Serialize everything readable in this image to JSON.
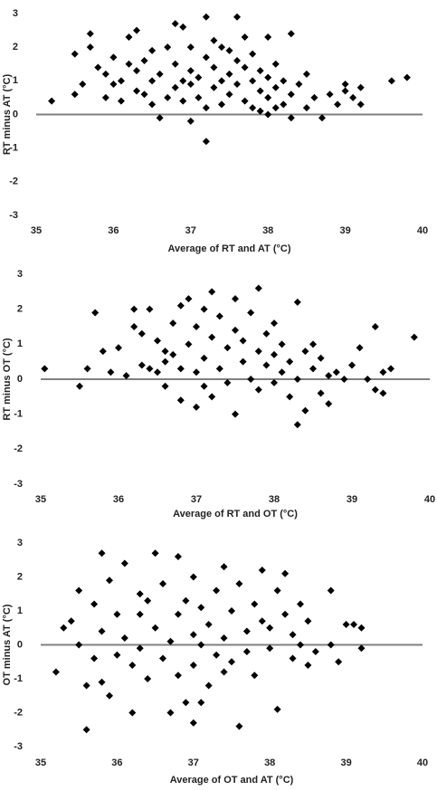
{
  "chart_data": [
    {
      "type": "scatter",
      "x_label": "Average of RT and AT (°C)",
      "y_label": "RT minus  AT (°C)",
      "xlim": [
        35,
        40
      ],
      "xticks": [
        35,
        36,
        37,
        38,
        39,
        40
      ],
      "ylim": [
        -3,
        3
      ],
      "yticks": [
        -3,
        -2,
        -1,
        0,
        1,
        2,
        3
      ],
      "color": "#000000",
      "x": [
        35.2,
        35.5,
        35.5,
        35.6,
        35.7,
        35.7,
        35.8,
        35.9,
        35.9,
        36.0,
        36.0,
        36.1,
        36.1,
        36.2,
        36.2,
        36.3,
        36.3,
        36.3,
        36.4,
        36.4,
        36.5,
        36.5,
        36.5,
        36.6,
        36.6,
        36.7,
        36.7,
        36.8,
        36.8,
        36.8,
        36.9,
        36.9,
        37.0,
        37.0,
        37.0,
        37.0,
        37.1,
        37.1,
        37.2,
        37.2,
        37.2,
        37.2,
        37.3,
        37.3,
        37.3,
        37.4,
        37.4,
        37.5,
        37.5,
        37.5,
        37.6,
        37.6,
        37.6,
        37.7,
        37.7,
        37.7,
        37.8,
        37.8,
        37.8,
        37.9,
        37.9,
        38.0,
        38.0,
        38.0,
        38.0,
        38.1,
        38.1,
        38.2,
        38.2,
        38.3,
        38.3,
        38.3,
        38.4,
        38.5,
        38.5,
        38.6,
        38.7,
        38.8,
        38.9,
        39.0,
        39.0,
        39.1,
        39.2,
        39.2,
        39.6,
        39.8,
        37.4,
        37.9,
        38.1,
        36.9
      ],
      "values": [
        0.4,
        1.8,
        0.6,
        0.9,
        2.4,
        2.0,
        1.4,
        1.2,
        0.5,
        1.7,
        0.9,
        1.0,
        0.4,
        1.5,
        2.3,
        2.5,
        1.3,
        0.7,
        1.6,
        0.6,
        1.9,
        0.3,
        1.0,
        1.2,
        -0.1,
        0.5,
        2.0,
        2.7,
        1.5,
        0.8,
        2.6,
        0.4,
        1.3,
        0.9,
        -0.2,
        2.0,
        1.1,
        0.5,
        2.9,
        1.7,
        -0.8,
        0.2,
        1.4,
        0.8,
        2.2,
        1.0,
        0.3,
        1.9,
        0.6,
        1.2,
        2.9,
        1.6,
        0.9,
        0.4,
        1.4,
        2.3,
        1.0,
        0.2,
        1.8,
        0.7,
        1.3,
        2.3,
        0.5,
        1.1,
        0.0,
        0.8,
        1.5,
        0.3,
        1.0,
        -0.1,
        2.4,
        0.6,
        0.9,
        0.2,
        1.2,
        0.5,
        -0.1,
        0.6,
        0.3,
        0.7,
        0.9,
        0.5,
        0.8,
        0.3,
        1.0,
        1.1,
        2.0,
        0.1,
        0.2,
        1.0
      ]
    },
    {
      "type": "scatter",
      "x_label": "Average of RT and OT (°C)",
      "y_label": "RT minus OT (°C)",
      "xlim": [
        35,
        40
      ],
      "xticks": [
        35,
        36,
        37,
        38,
        39,
        40
      ],
      "ylim": [
        -3,
        3
      ],
      "yticks": [
        -3,
        -2,
        -1,
        0,
        1,
        2,
        3
      ],
      "color": "#000000",
      "x": [
        35.05,
        35.5,
        35.6,
        35.7,
        35.8,
        35.9,
        36.0,
        36.1,
        36.2,
        36.2,
        36.3,
        36.3,
        36.4,
        36.4,
        36.5,
        36.5,
        36.6,
        36.6,
        36.7,
        36.7,
        36.8,
        36.8,
        36.8,
        36.9,
        36.9,
        37.0,
        37.0,
        37.0,
        37.1,
        37.1,
        37.2,
        37.2,
        37.2,
        37.3,
        37.3,
        37.4,
        37.4,
        37.5,
        37.5,
        37.5,
        37.6,
        37.6,
        37.7,
        37.7,
        37.8,
        37.8,
        37.8,
        37.9,
        37.9,
        38.0,
        38.0,
        38.0,
        38.1,
        38.1,
        38.2,
        38.2,
        38.3,
        38.3,
        38.3,
        38.4,
        38.4,
        38.5,
        38.5,
        38.6,
        38.6,
        38.7,
        38.7,
        38.8,
        38.9,
        39.0,
        39.1,
        39.2,
        39.3,
        39.3,
        39.4,
        39.4,
        39.5,
        39.8,
        37.1,
        36.6
      ],
      "values": [
        0.3,
        -0.2,
        0.3,
        1.9,
        0.8,
        0.2,
        0.9,
        0.1,
        2.0,
        1.5,
        1.3,
        0.4,
        2.0,
        0.3,
        0.2,
        1.1,
        0.5,
        -0.2,
        1.6,
        0.7,
        2.1,
        -0.6,
        0.3,
        2.3,
        1.0,
        1.5,
        -0.8,
        0.2,
        2.0,
        0.6,
        2.5,
        1.2,
        -0.5,
        0.3,
        1.8,
        0.9,
        -0.1,
        1.4,
        2.3,
        -1.0,
        0.5,
        1.1,
        0.0,
        1.9,
        0.8,
        -0.3,
        2.6,
        1.3,
        0.4,
        0.7,
        -0.1,
        1.6,
        0.2,
        1.0,
        -0.5,
        0.5,
        2.2,
        -1.3,
        0.0,
        0.8,
        -0.9,
        0.3,
        1.0,
        -0.4,
        0.6,
        -0.7,
        0.1,
        0.2,
        0.0,
        0.4,
        0.9,
        0.0,
        -0.3,
        1.5,
        -0.4,
        0.2,
        0.3,
        1.2,
        -0.2,
        0.8
      ]
    },
    {
      "type": "scatter",
      "x_label": "Average of OT and AT (°C)",
      "y_label": "OT minus AT (°C)",
      "xlim": [
        35,
        40
      ],
      "xticks": [
        35,
        36,
        37,
        38,
        39,
        40
      ],
      "ylim": [
        -3,
        3
      ],
      "yticks": [
        -3,
        -2,
        -1,
        0,
        1,
        2,
        3
      ],
      "color": "#000000",
      "x": [
        35.2,
        35.3,
        35.4,
        35.5,
        35.5,
        35.6,
        35.6,
        35.7,
        35.7,
        35.8,
        35.8,
        35.8,
        35.9,
        35.9,
        36.0,
        36.0,
        36.1,
        36.1,
        36.2,
        36.2,
        36.3,
        36.3,
        36.4,
        36.4,
        36.5,
        36.5,
        36.6,
        36.6,
        36.7,
        36.7,
        36.8,
        36.8,
        36.8,
        36.9,
        36.9,
        37.0,
        37.0,
        37.0,
        37.0,
        37.1,
        37.1,
        37.2,
        37.2,
        37.3,
        37.3,
        37.4,
        37.4,
        37.4,
        37.5,
        37.5,
        37.6,
        37.6,
        37.7,
        37.7,
        37.8,
        37.8,
        37.9,
        37.9,
        38.0,
        38.0,
        38.1,
        38.1,
        38.2,
        38.2,
        38.3,
        38.3,
        38.4,
        38.4,
        38.5,
        38.5,
        38.6,
        38.8,
        38.8,
        38.9,
        39.0,
        39.1,
        39.2,
        39.2,
        36.3,
        37.1
      ],
      "values": [
        -0.8,
        0.5,
        0.7,
        1.6,
        0.0,
        -1.2,
        -2.5,
        1.2,
        -0.4,
        2.7,
        0.4,
        -1.1,
        1.9,
        -1.5,
        0.9,
        -0.3,
        2.4,
        0.2,
        -2.0,
        -0.6,
        1.5,
        -0.1,
        1.3,
        -1.0,
        0.5,
        2.7,
        -0.4,
        1.8,
        0.1,
        -2.0,
        2.6,
        0.9,
        -0.9,
        1.3,
        -1.7,
        0.3,
        -0.6,
        2.0,
        -2.3,
        0.0,
        1.1,
        -1.2,
        0.6,
        1.6,
        -0.3,
        2.3,
        0.2,
        -0.8,
        1.0,
        -0.5,
        -2.4,
        1.8,
        0.4,
        -0.2,
        1.2,
        -0.9,
        0.7,
        2.2,
        -0.1,
        0.5,
        1.6,
        -1.9,
        0.9,
        2.1,
        -0.4,
        0.3,
        1.2,
        0.0,
        -0.6,
        0.7,
        -0.2,
        1.6,
        0.0,
        -0.5,
        0.6,
        0.6,
        0.5,
        -0.1,
        0.9,
        -1.7
      ]
    }
  ]
}
